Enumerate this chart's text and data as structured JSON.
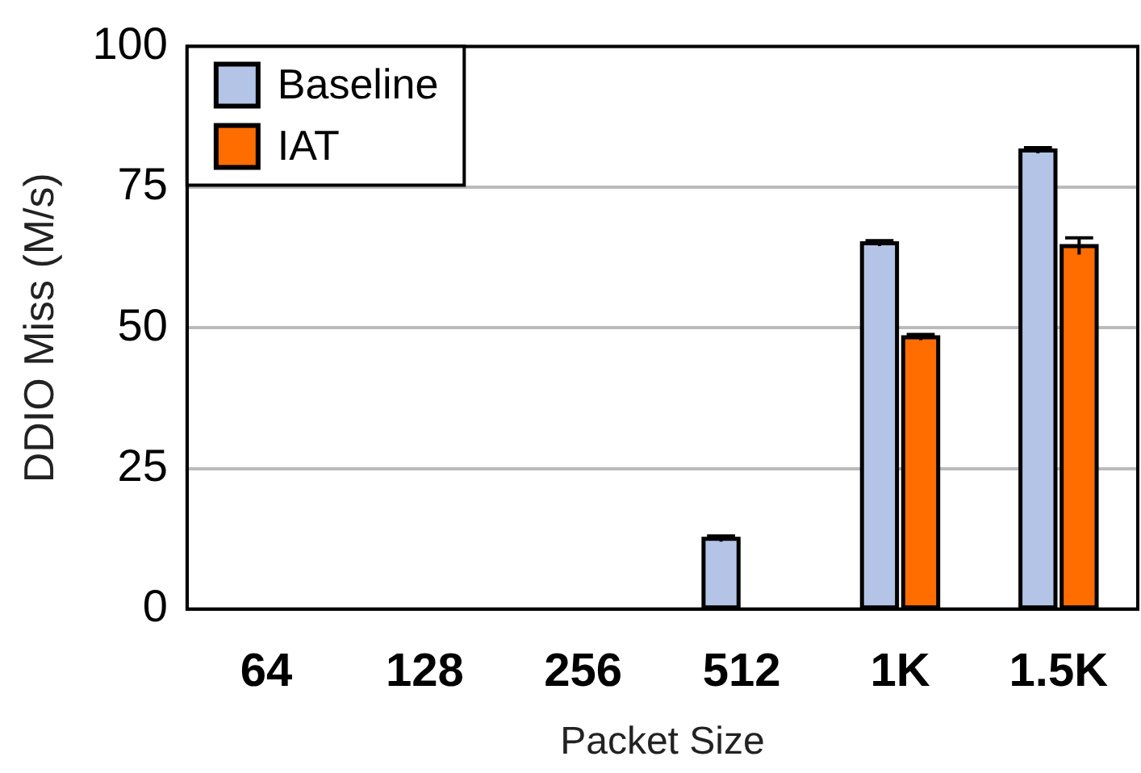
{
  "chart_data": {
    "type": "bar",
    "xlabel": "Packet Size",
    "ylabel": "DDIO Miss (M/s)",
    "categories": [
      "64",
      "128",
      "256",
      "512",
      "1K",
      "1.5K"
    ],
    "series": [
      {
        "name": "Baseline",
        "color": "#b4c4e6",
        "values": [
          0,
          0,
          0,
          12.5,
          65,
          81.5
        ],
        "errors": [
          null,
          null,
          null,
          0.5,
          0.5,
          0.5
        ]
      },
      {
        "name": "IAT",
        "color": "#ff6c00",
        "values": [
          0,
          0,
          0,
          0,
          48.3,
          64.5
        ],
        "errors": [
          null,
          null,
          null,
          null,
          0.5,
          1.5
        ]
      }
    ],
    "ylim": [
      0,
      100
    ],
    "yticks": [
      0,
      25,
      50,
      75,
      100
    ],
    "grid": "y",
    "legend": "top left"
  }
}
